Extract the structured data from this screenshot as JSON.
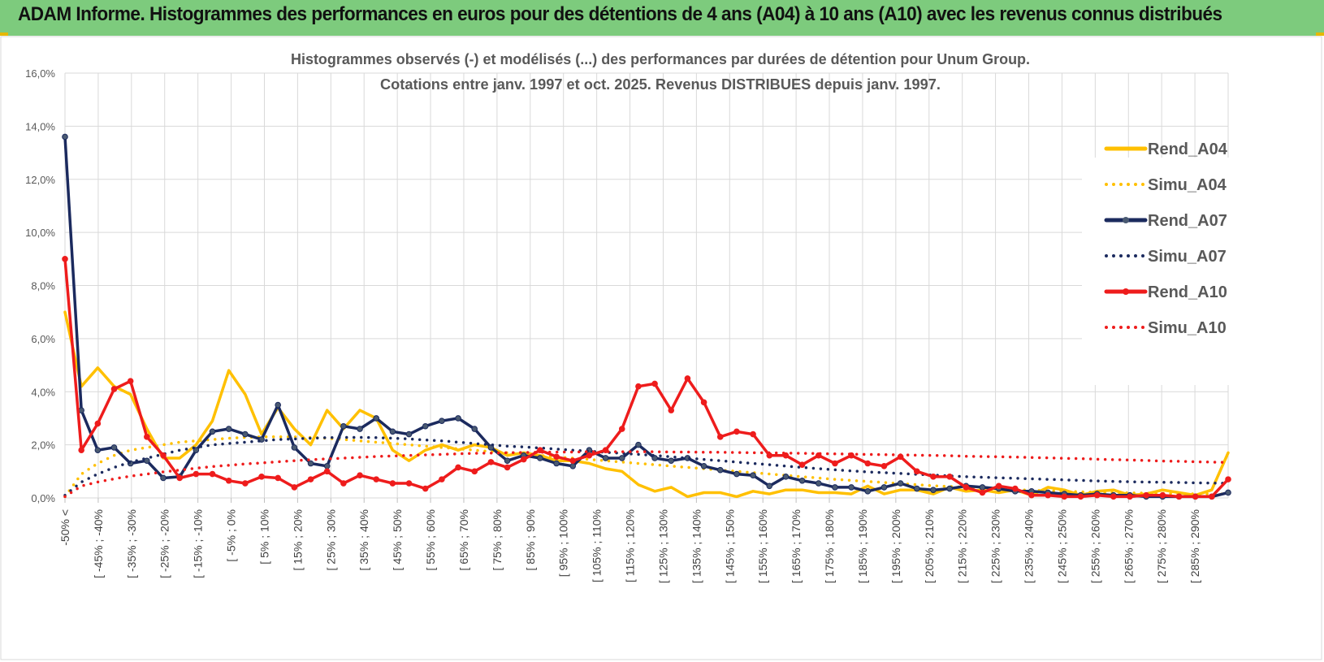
{
  "banner": {
    "title": "ADAM Informe. Histogrammes des performances en euros pour des détentions de 4 ans (A04) à 10 ans (A10) avec les revenus connus distribués"
  },
  "chart_data": {
    "type": "line",
    "title": "Histogrammes observés (-) et modélisés (...) des performances par durées de détention pour Unum Group.",
    "subtitle": "Cotations entre janv. 1997 et oct. 2025.  Revenus DISTRIBUES depuis janv. 1997.",
    "xlabel": "",
    "ylabel": "",
    "ylim": [
      0,
      16
    ],
    "y_ticks": [
      "0,0%",
      "2,0%",
      "4,0%",
      "6,0%",
      "8,0%",
      "10,0%",
      "12,0%",
      "14,0%",
      "16,0%"
    ],
    "y_tick_values": [
      0,
      2,
      4,
      6,
      8,
      10,
      12,
      14,
      16
    ],
    "grid": true,
    "legend_position": "right",
    "x_tick_labels": [
      "-50% <",
      "[ -45% ; -40%",
      "[ -35% ; -30%",
      "[ -25% ; -20%",
      "[ -15% ; -10%",
      "[ -5% ; 0%",
      "[ 5% ; 10%",
      "[ 15% ; 20%",
      "[ 25% ; 30%",
      "[ 35% ; 40%",
      "[ 45% ; 50%",
      "[ 55% ; 60%",
      "[ 65% ; 70%",
      "[ 75% ; 80%",
      "[ 85% ; 90%",
      "[ 95% ; 100%",
      "[ 105% ; 110%",
      "[ 115% ; 120%",
      "[ 125% ; 130%",
      "[ 135% ; 140%",
      "[ 145% ; 150%",
      "[ 155% ; 160%",
      "[ 165% ; 170%",
      "[ 175% ; 180%",
      "[ 185% ; 190%",
      "[ 195% ; 200%",
      "[ 205% ; 210%",
      "[ 215% ; 220%",
      "[ 225% ; 230%",
      "[ 235% ; 240%",
      "[ 245% ; 250%",
      "[ 255% ; 260%",
      "[ 265% ; 270%",
      "[ 275% ; 280%",
      "[ 285% ; 290%"
    ],
    "series": [
      {
        "name": "Rend_A04",
        "style": "solid",
        "color": "#ffc000",
        "markers": false,
        "values": [
          7.0,
          4.2,
          4.9,
          4.2,
          3.9,
          2.6,
          1.5,
          1.5,
          2.0,
          2.9,
          4.8,
          3.9,
          2.4,
          3.4,
          2.6,
          2.0,
          3.3,
          2.6,
          3.3,
          3.0,
          1.8,
          1.4,
          1.8,
          2.0,
          1.8,
          2.0,
          1.9,
          1.6,
          1.7,
          1.6,
          1.4,
          1.4,
          1.3,
          1.1,
          1.0,
          0.5,
          0.25,
          0.4,
          0.05,
          0.2,
          0.2,
          0.05,
          0.25,
          0.15,
          0.3,
          0.3,
          0.2,
          0.2,
          0.15,
          0.45,
          0.15,
          0.3,
          0.3,
          0.15,
          0.4,
          0.25,
          0.3,
          0.2,
          0.3,
          0.1,
          0.4,
          0.3,
          0.1,
          0.25,
          0.3,
          0.1,
          0.15,
          0.3,
          0.2,
          0.1,
          0.3,
          1.7
        ]
      },
      {
        "name": "Simu_A04",
        "style": "dotted",
        "color": "#ffc000",
        "markers": false,
        "values": [
          0.05,
          0.9,
          1.3,
          1.6,
          1.8,
          1.9,
          2.0,
          2.1,
          2.15,
          2.2,
          2.25,
          2.28,
          2.3,
          2.3,
          2.3,
          2.28,
          2.25,
          2.2,
          2.15,
          2.1,
          2.05,
          2.0,
          1.95,
          1.9,
          1.85,
          1.8,
          1.75,
          1.7,
          1.65,
          1.6,
          1.55,
          1.5,
          1.45,
          1.4,
          1.35,
          1.3,
          1.25,
          1.2,
          1.15,
          1.1,
          1.05,
          1.0,
          0.95,
          0.9,
          0.85,
          0.8,
          0.75,
          0.7,
          0.66,
          0.62,
          0.58,
          0.54,
          0.5,
          0.46,
          0.43,
          0.4,
          0.37,
          0.34,
          0.31,
          0.29,
          0.27,
          0.25,
          0.23,
          0.21,
          0.2,
          0.19,
          0.18,
          0.17,
          0.16,
          0.15,
          0.15,
          0.15
        ]
      },
      {
        "name": "Rend_A07",
        "style": "solid",
        "color": "#1b2a5e",
        "markers": true,
        "values": [
          13.6,
          3.3,
          1.8,
          1.9,
          1.3,
          1.4,
          0.75,
          0.8,
          1.8,
          2.5,
          2.6,
          2.4,
          2.2,
          3.5,
          1.9,
          1.3,
          1.2,
          2.7,
          2.6,
          3.0,
          2.5,
          2.4,
          2.7,
          2.9,
          3.0,
          2.6,
          1.9,
          1.4,
          1.6,
          1.5,
          1.3,
          1.2,
          1.8,
          1.5,
          1.5,
          2.0,
          1.5,
          1.4,
          1.5,
          1.2,
          1.05,
          0.9,
          0.85,
          0.45,
          0.8,
          0.65,
          0.55,
          0.4,
          0.4,
          0.25,
          0.4,
          0.55,
          0.35,
          0.3,
          0.35,
          0.45,
          0.4,
          0.35,
          0.25,
          0.25,
          0.2,
          0.15,
          0.1,
          0.15,
          0.1,
          0.1,
          0.05,
          0.05,
          0.05,
          0.05,
          0.05,
          0.2
        ]
      },
      {
        "name": "Simu_A07",
        "style": "dotted",
        "color": "#1b2a5e",
        "markers": false,
        "values": [
          0.1,
          0.6,
          0.9,
          1.15,
          1.35,
          1.5,
          1.65,
          1.8,
          1.9,
          2.0,
          2.05,
          2.1,
          2.15,
          2.2,
          2.22,
          2.25,
          2.27,
          2.28,
          2.28,
          2.27,
          2.25,
          2.22,
          2.18,
          2.15,
          2.1,
          2.05,
          2.0,
          1.95,
          1.92,
          1.88,
          1.84,
          1.8,
          1.76,
          1.72,
          1.68,
          1.64,
          1.6,
          1.55,
          1.5,
          1.45,
          1.4,
          1.35,
          1.3,
          1.25,
          1.2,
          1.15,
          1.1,
          1.06,
          1.02,
          0.98,
          0.95,
          0.92,
          0.89,
          0.86,
          0.83,
          0.8,
          0.78,
          0.76,
          0.74,
          0.72,
          0.7,
          0.68,
          0.66,
          0.64,
          0.62,
          0.61,
          0.6,
          0.59,
          0.58,
          0.57,
          0.56,
          0.55
        ]
      },
      {
        "name": "Rend_A10",
        "style": "solid",
        "color": "#ee1c1c",
        "markers": true,
        "values": [
          9.0,
          1.8,
          2.8,
          4.1,
          4.4,
          2.3,
          1.6,
          0.75,
          0.9,
          0.9,
          0.65,
          0.55,
          0.8,
          0.75,
          0.4,
          0.7,
          1.0,
          0.55,
          0.85,
          0.7,
          0.55,
          0.55,
          0.35,
          0.7,
          1.15,
          1.0,
          1.35,
          1.15,
          1.45,
          1.8,
          1.55,
          1.4,
          1.6,
          1.8,
          2.6,
          4.2,
          4.3,
          3.3,
          4.5,
          3.6,
          2.3,
          2.5,
          2.4,
          1.6,
          1.6,
          1.25,
          1.6,
          1.3,
          1.6,
          1.3,
          1.2,
          1.55,
          1.0,
          0.8,
          0.8,
          0.4,
          0.2,
          0.45,
          0.35,
          0.1,
          0.1,
          0.05,
          0.05,
          0.1,
          0.05,
          0.05,
          0.1,
          0.1,
          0.05,
          0.05,
          0.05,
          0.7
        ]
      },
      {
        "name": "Simu_A10",
        "style": "dotted",
        "color": "#ee1c1c",
        "markers": false,
        "values": [
          0.05,
          0.45,
          0.6,
          0.72,
          0.82,
          0.9,
          0.98,
          1.05,
          1.12,
          1.18,
          1.23,
          1.28,
          1.32,
          1.36,
          1.4,
          1.44,
          1.47,
          1.5,
          1.53,
          1.56,
          1.58,
          1.6,
          1.62,
          1.64,
          1.66,
          1.68,
          1.69,
          1.7,
          1.71,
          1.72,
          1.73,
          1.73,
          1.74,
          1.74,
          1.74,
          1.74,
          1.74,
          1.73,
          1.73,
          1.72,
          1.72,
          1.71,
          1.7,
          1.7,
          1.69,
          1.68,
          1.67,
          1.66,
          1.65,
          1.64,
          1.63,
          1.62,
          1.61,
          1.6,
          1.59,
          1.57,
          1.56,
          1.55,
          1.54,
          1.52,
          1.51,
          1.49,
          1.48,
          1.46,
          1.44,
          1.43,
          1.41,
          1.39,
          1.38,
          1.36,
          1.35,
          1.34
        ]
      }
    ]
  }
}
